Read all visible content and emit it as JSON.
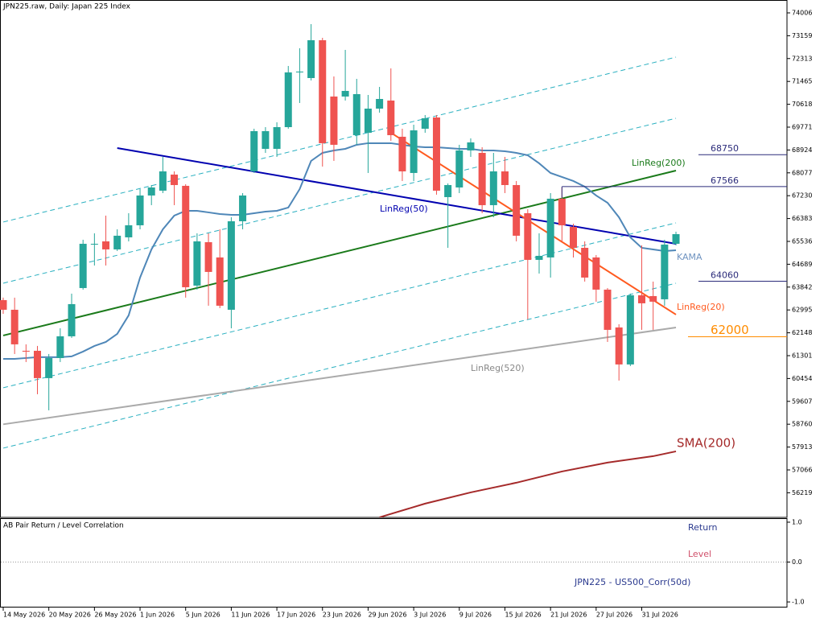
{
  "chart_data": {
    "type": "candlestick",
    "title": "JPN225.raw, Daily:  Japan 225 Index",
    "up_color": "#26a69a",
    "down_color": "#ef5350",
    "open": [
      63360,
      63002,
      61481,
      61481,
      60468,
      61212,
      62018,
      63807,
      65418,
      65537,
      65239,
      65686,
      66133,
      67237,
      67416,
      68012,
      67595,
      63897,
      65507,
      64941,
      63002,
      66282,
      68131,
      68966,
      68966,
      69771,
      71799,
      71590,
      72992,
      70905,
      70905,
      69473,
      69563,
      70457,
      70756,
      69414,
      68072,
      69712,
      70129,
      67177,
      67535,
      68907,
      68817,
      66879,
      68131,
      67624,
      66581,
      64851,
      64941,
      67118,
      66074,
      65298,
      64941,
      63748,
      62346,
      60975,
      63539,
      63509,
      63390,
      65447
    ],
    "high": [
      63450,
      63450,
      61720,
      61661,
      61362,
      62316,
      63599,
      65597,
      65835,
      66491,
      65984,
      66581,
      67475,
      67624,
      68668,
      68131,
      67654,
      65835,
      65835,
      65984,
      66432,
      67326,
      69712,
      69771,
      69950,
      72038,
      72694,
      73588,
      73081,
      71650,
      72634,
      71561,
      70964,
      71262,
      71948,
      69712,
      69861,
      70219,
      70219,
      67684,
      69116,
      69354,
      69026,
      68817,
      68668,
      67774,
      66730,
      65835,
      67326,
      67535,
      66193,
      65537,
      65030,
      63807,
      62465,
      63599,
      65388,
      64046,
      65597,
      65895
    ],
    "low": [
      62853,
      61362,
      61064,
      59871,
      59275,
      61064,
      61959,
      63748,
      64642,
      64642,
      65179,
      65537,
      65984,
      66879,
      67326,
      66879,
      63450,
      63748,
      63152,
      63062,
      62316,
      65984,
      68072,
      68817,
      68668,
      69712,
      70666,
      71501,
      68310,
      68519,
      70756,
      69116,
      68072,
      70308,
      69265,
      67774,
      67774,
      69563,
      67267,
      65298,
      67326,
      68668,
      66581,
      66432,
      67326,
      65537,
      62645,
      64344,
      64195,
      65537,
      64941,
      64046,
      63301,
      61809,
      60378,
      60915,
      62257,
      62257,
      63152,
      65388
    ],
    "close": [
      63002,
      61720,
      61450,
      60468,
      61212,
      62018,
      63211,
      65447,
      65447,
      65239,
      65746,
      66133,
      67237,
      67535,
      68131,
      67624,
      63837,
      65537,
      64404,
      63152,
      66282,
      67237,
      69622,
      69622,
      69771,
      71799,
      71830,
      72992,
      69176,
      69116,
      71113,
      70994,
      70457,
      70815,
      69473,
      68131,
      69652,
      70100,
      67416,
      67624,
      68907,
      69205,
      66879,
      68131,
      67624,
      65746,
      64851,
      65000,
      67118,
      66133,
      65298,
      64195,
      63748,
      62257,
      60975,
      63539,
      63241,
      63301,
      65418,
      65805
    ],
    "xticks": [
      {
        "value": 0,
        "label": "14 May 2026"
      },
      {
        "value": 4,
        "label": "20 May 2026"
      },
      {
        "value": 8,
        "label": "26 May 2026"
      },
      {
        "value": 12,
        "label": "1 Jun 2026"
      },
      {
        "value": 16,
        "label": "5 Jun 2026"
      },
      {
        "value": 20,
        "label": "11 Jun 2026"
      },
      {
        "value": 24,
        "label": "17 Jun 2026"
      },
      {
        "value": 28,
        "label": "23 Jun 2026"
      },
      {
        "value": 32,
        "label": "29 Jun 2026"
      },
      {
        "value": 36,
        "label": "3 Jul 2026"
      },
      {
        "value": 40,
        "label": "9 Jul 2026"
      },
      {
        "value": 44,
        "label": "15 Jul 2026"
      },
      {
        "value": 48,
        "label": "21 Jul 2026"
      },
      {
        "value": 52,
        "label": "27 Jul 2026"
      },
      {
        "value": 56,
        "label": "31 Jul 2026"
      }
    ],
    "ylim": [
      55306,
      74483
    ],
    "yticks": [
      74006,
      73159,
      72313,
      71465,
      70618,
      69771,
      68924,
      68077,
      67230,
      66383,
      65536,
      64689,
      63842,
      62995,
      62148,
      61301,
      60454,
      59607,
      58760,
      57913,
      57066,
      56219
    ],
    "overlays": [
      {
        "color": "#2ab0c0",
        "dashed": true,
        "x": [
          0,
          59
        ],
        "values": [
          66253,
          72366
        ]
      },
      {
        "color": "#2ab0c0",
        "dashed": true,
        "x": [
          0,
          59
        ],
        "values": [
          63986,
          70100
        ]
      },
      {
        "color": "#2ab0c0",
        "dashed": true,
        "x": [
          0,
          59
        ],
        "values": [
          60110,
          66223
        ]
      },
      {
        "color": "#2ab0c0",
        "dashed": true,
        "x": [
          0,
          59
        ],
        "values": [
          57873,
          63986
        ]
      },
      {
        "name": "LinReg(520)",
        "color": "#aaaaaa",
        "x": [
          0,
          59
        ],
        "values": [
          58756,
          62346
        ]
      },
      {
        "name": "LinReg(200)",
        "color": "#1a7a1a",
        "x": [
          0,
          59
        ],
        "values": [
          62048,
          68161
        ]
      },
      {
        "name": "LinReg(50)",
        "color": "#0000b0",
        "x": [
          10,
          59
        ],
        "values": [
          68996,
          65447
        ]
      },
      {
        "name": "LinReg(20)",
        "color": "#ff5a1f",
        "x": [
          34,
          59
        ],
        "values": [
          69563,
          62823
        ]
      },
      {
        "name": "KAMA",
        "color": "#4f87b8",
        "x": [
          0,
          1,
          2,
          3,
          4,
          5,
          6,
          7,
          8,
          9,
          10,
          11,
          12,
          13,
          14,
          15,
          16,
          17,
          18,
          19,
          20,
          21,
          22,
          23,
          24,
          25,
          26,
          27,
          28,
          29,
          30,
          31,
          32,
          33,
          34,
          35,
          36,
          37,
          38,
          39,
          40,
          41,
          42,
          43,
          44,
          45,
          46,
          47,
          48,
          49,
          50,
          51,
          52,
          53,
          54,
          55,
          56,
          57,
          58,
          59
        ],
        "values": [
          61183,
          61183,
          61213,
          61243,
          61243,
          61243,
          61273,
          61452,
          61660,
          61810,
          62108,
          62794,
          64195,
          65239,
          65984,
          66491,
          66670,
          66670,
          66611,
          66551,
          66521,
          66521,
          66581,
          66640,
          66670,
          66790,
          67475,
          68519,
          68817,
          68907,
          68966,
          69116,
          69176,
          69176,
          69176,
          69116,
          69056,
          69026,
          69026,
          68996,
          68966,
          68966,
          68907,
          68907,
          68877,
          68817,
          68728,
          68430,
          68072,
          67923,
          67774,
          67565,
          67237,
          66968,
          66432,
          65686,
          65298,
          65239,
          65179,
          65209
        ]
      },
      {
        "name": "SMA(200)",
        "color": "#a52a2a",
        "x": [
          33,
          37,
          41,
          45,
          49,
          53,
          57,
          59
        ],
        "values": [
          55309,
          55816,
          56233,
          56591,
          57008,
          57337,
          57575,
          57754
        ]
      }
    ],
    "levels": [
      {
        "value": 68750,
        "color": "#2b2b7a"
      },
      {
        "value": 67566,
        "color": "#2b2b7a"
      },
      {
        "value": 64060,
        "color": "#2b2b7a"
      },
      {
        "value": 62000,
        "color": "#ff8c00"
      }
    ],
    "indicator": {
      "title": "AB Pair Return / Level Correlation",
      "ylim": [
        -1.14,
        1.08
      ],
      "yticks": [
        {
          "value": 1,
          "label": "1.0"
        },
        {
          "value": 0,
          "label": "0.0"
        },
        {
          "value": -1,
          "label": "-1.0"
        }
      ],
      "labels": [
        {
          "text": "Return",
          "color": "#2b3a8f"
        },
        {
          "text": "Level",
          "color": "#d0506a"
        },
        {
          "text": "JPN225 - US500_Corr(50d)",
          "color": "#2b3a8f"
        }
      ]
    }
  }
}
